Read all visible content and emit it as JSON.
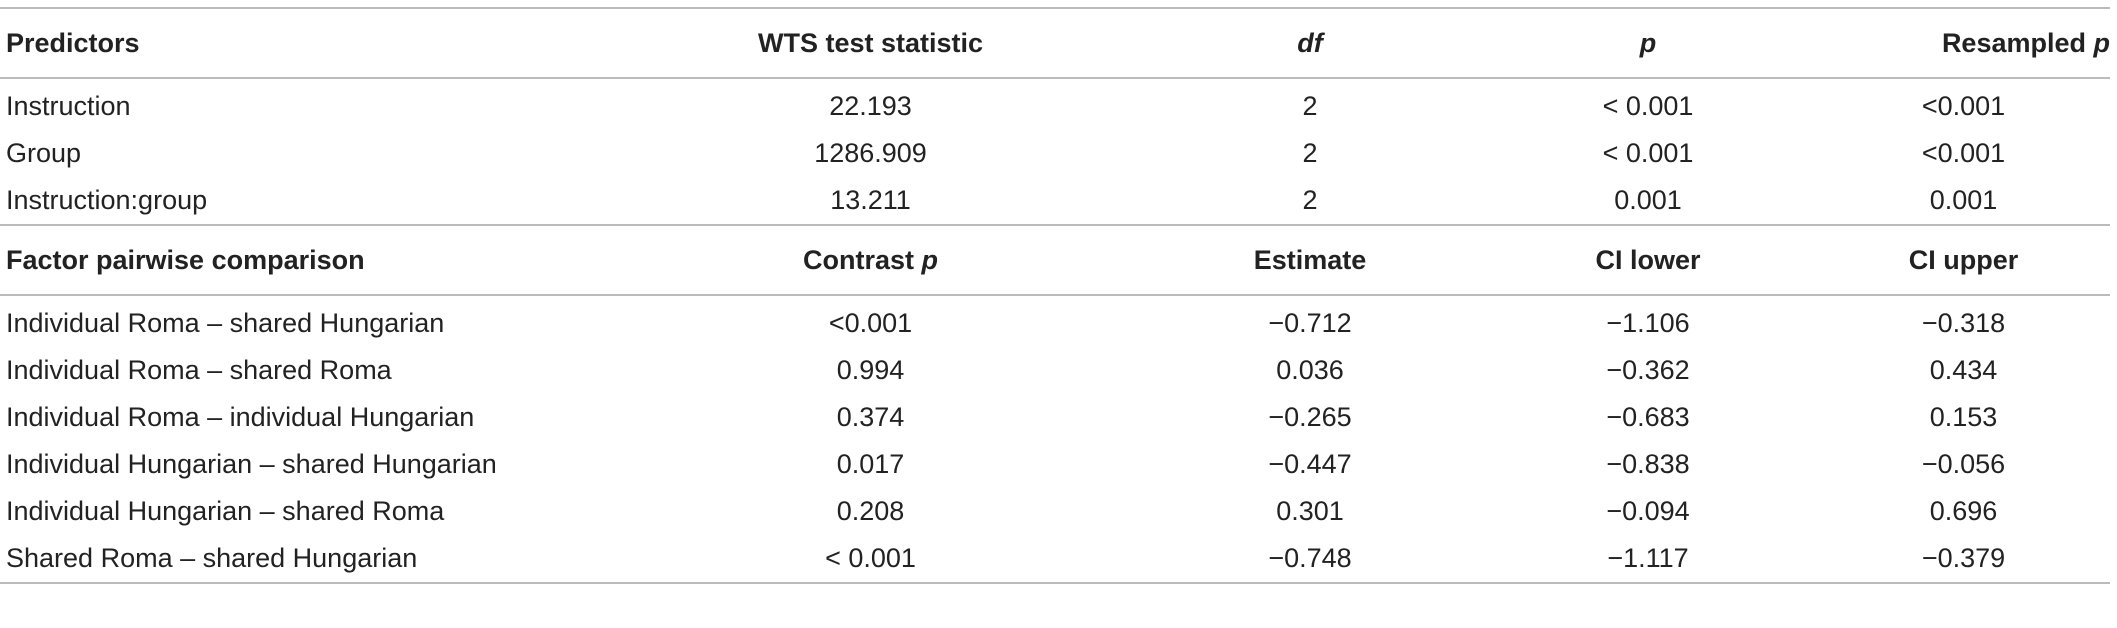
{
  "section1": {
    "header": {
      "predictors": "Predictors",
      "wts": "WTS test statistic",
      "df": "df",
      "p": "p",
      "resampled": "Resampled ",
      "resampled_p": "p"
    },
    "rows": [
      {
        "predictor": "Instruction",
        "wts": "22.193",
        "df": "2",
        "p": "< 0.001",
        "resampled": "<0.001"
      },
      {
        "predictor": "Group",
        "wts": "1286.909",
        "df": "2",
        "p": "< 0.001",
        "resampled": "<0.001"
      },
      {
        "predictor": "Instruction:group",
        "wts": "13.211",
        "df": "2",
        "p": "0.001",
        "resampled": "0.001"
      }
    ]
  },
  "section2": {
    "header": {
      "comparison": "Factor pairwise comparison",
      "contrast": "Contrast ",
      "contrast_p": "p",
      "estimate": "Estimate",
      "ci_lower": "CI lower",
      "ci_upper": "CI upper"
    },
    "rows": [
      {
        "comparison": "Individual Roma – shared Hungarian",
        "contrast": "<0.001",
        "estimate": "−0.712",
        "ci_lower": "−1.106",
        "ci_upper": "−0.318"
      },
      {
        "comparison": "Individual Roma – shared Roma",
        "contrast": "0.994",
        "estimate": "0.036",
        "ci_lower": "−0.362",
        "ci_upper": "0.434"
      },
      {
        "comparison": "Individual Roma – individual Hungarian",
        "contrast": "0.374",
        "estimate": "−0.265",
        "ci_lower": "−0.683",
        "ci_upper": "0.153"
      },
      {
        "comparison": "Individual Hungarian – shared Hungarian",
        "contrast": "0.017",
        "estimate": "−0.447",
        "ci_lower": "−0.838",
        "ci_upper": "−0.056"
      },
      {
        "comparison": "Individual Hungarian – shared Roma",
        "contrast": "0.208",
        "estimate": "0.301",
        "ci_lower": "−0.094",
        "ci_upper": "0.696"
      },
      {
        "comparison": "Shared Roma – shared Hungarian",
        "contrast": "< 0.001",
        "estimate": "−0.748",
        "ci_lower": "−1.117",
        "ci_upper": "−0.379"
      }
    ]
  }
}
